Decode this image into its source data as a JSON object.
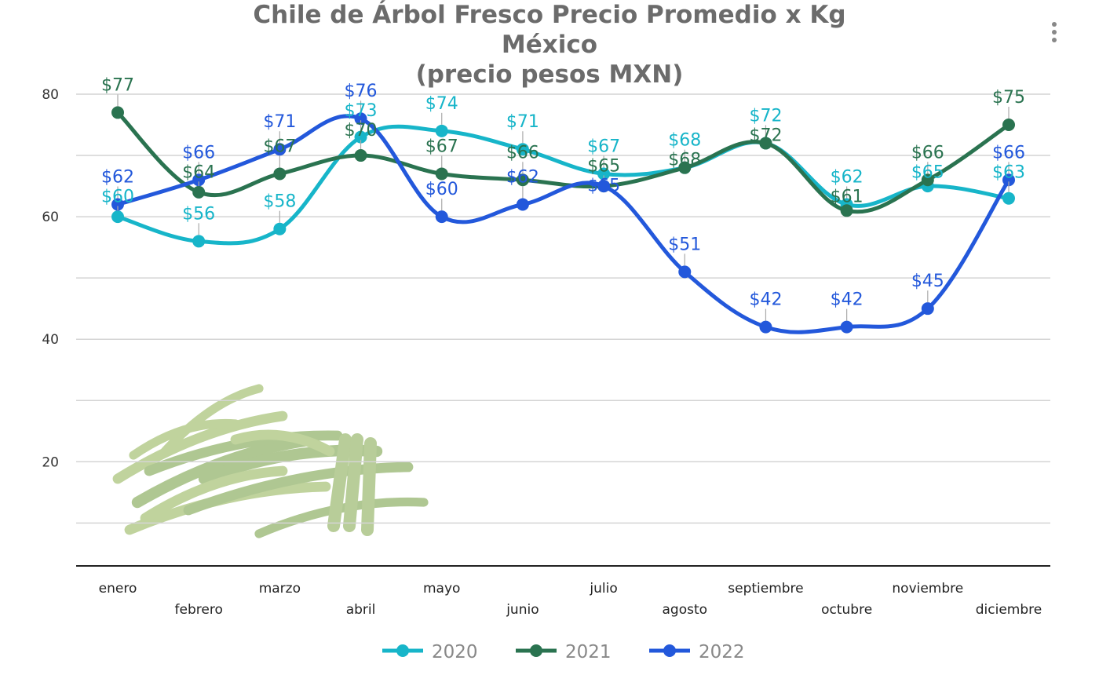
{
  "chart_data": {
    "type": "line",
    "title": [
      "Chile de Árbol Fresco Precio Promedio x Kg",
      "México",
      "(precio pesos MXN)"
    ],
    "xlabel": "",
    "ylabel": "",
    "categories": [
      "enero",
      "febrero",
      "marzo",
      "abril",
      "mayo",
      "junio",
      "julio",
      "agosto",
      "septiembre",
      "octubre",
      "noviembre",
      "diciembre"
    ],
    "ylim": [
      3,
      80
    ],
    "yticks": [
      20,
      40,
      60,
      80
    ],
    "grid_step": 10,
    "grid": true,
    "smooth": true,
    "label_prefix": "$",
    "legend_position": "bottom",
    "series": [
      {
        "name": "2020",
        "color": "#17b5c9",
        "values": [
          60,
          56,
          58,
          73,
          74,
          71,
          67,
          68,
          72,
          62,
          65,
          63
        ]
      },
      {
        "name": "2021",
        "color": "#2a7350",
        "values": [
          77,
          64,
          67,
          70,
          67,
          66,
          65,
          68,
          72,
          61,
          66,
          75
        ]
      },
      {
        "name": "2022",
        "color": "#2358db",
        "values": [
          62,
          66,
          71,
          76,
          60,
          62,
          65,
          51,
          42,
          42,
          45,
          66
        ]
      }
    ]
  },
  "menu_icon": "more-vertical-icon",
  "decoration": "chile-peppers-image"
}
